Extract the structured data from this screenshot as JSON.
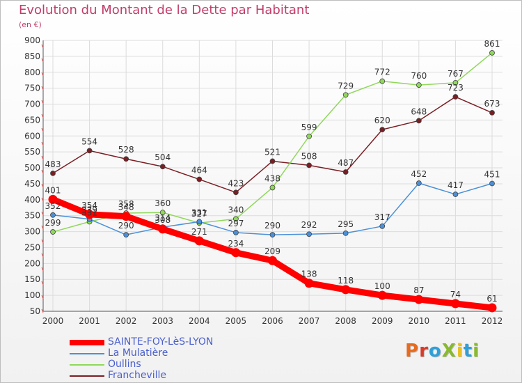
{
  "title": "Evolution du Montant de la Dette par Habitant",
  "subtitle": "(en €)",
  "logo": {
    "text": "ProXiti",
    "colors": [
      "#e86a1c",
      "#d83b2a",
      "#2f9fd8",
      "#89b92e",
      "#e8c21c",
      "#2f9fd8",
      "#89b92e"
    ]
  },
  "chart_data": {
    "type": "line",
    "x": [
      "2000",
      "2001",
      "2002",
      "2003",
      "2004",
      "2005",
      "2006",
      "2007",
      "2008",
      "2009",
      "2010",
      "2011",
      "2012"
    ],
    "yticks": [
      "50",
      "100",
      "150",
      "200",
      "250",
      "300",
      "350",
      "400",
      "450",
      "500",
      "550",
      "600",
      "650",
      "700",
      "750",
      "800",
      "850",
      "900"
    ],
    "ylim": [
      50,
      900
    ],
    "grid": true,
    "legend_position": "bottom-left",
    "series": [
      {
        "name": "SAINTE-FOY-LèS-LYON",
        "color": "#ff0000",
        "values": [
          401,
          354,
          348,
          308,
          271,
          234,
          209,
          138,
          118,
          100,
          87,
          74,
          61
        ],
        "labels": [
          "401",
          "354",
          "348",
          "308",
          "271",
          "234",
          "209",
          "138",
          "118",
          "100",
          "87",
          "74",
          "61"
        ]
      },
      {
        "name": "La Mulatière",
        "color": "#4a90d8",
        "values": [
          352,
          339,
          290,
          314,
          331,
          297,
          290,
          292,
          295,
          317,
          452,
          417,
          451
        ],
        "labels": [
          "352",
          "339",
          "290",
          "314",
          "331",
          "297",
          "290",
          "292",
          "295",
          "317",
          "452",
          "417",
          "451"
        ]
      },
      {
        "name": "Oullins",
        "color": "#8fd85a",
        "values": [
          299,
          331,
          358,
          360,
          327,
          340,
          438,
          599,
          729,
          772,
          760,
          767,
          861
        ],
        "labels": [
          "299",
          "331",
          "358",
          "360",
          "327",
          "340",
          "438",
          "599",
          "729",
          "772",
          "760",
          "767",
          "861"
        ]
      },
      {
        "name": "Francheville",
        "color": "#7a1e24",
        "values": [
          483,
          554,
          528,
          504,
          464,
          423,
          521,
          508,
          487,
          620,
          648,
          723,
          673
        ],
        "labels": [
          "483",
          "554",
          "528",
          "504",
          "464",
          "423",
          "521",
          "508",
          "487",
          "620",
          "648",
          "723",
          "673"
        ]
      }
    ]
  }
}
